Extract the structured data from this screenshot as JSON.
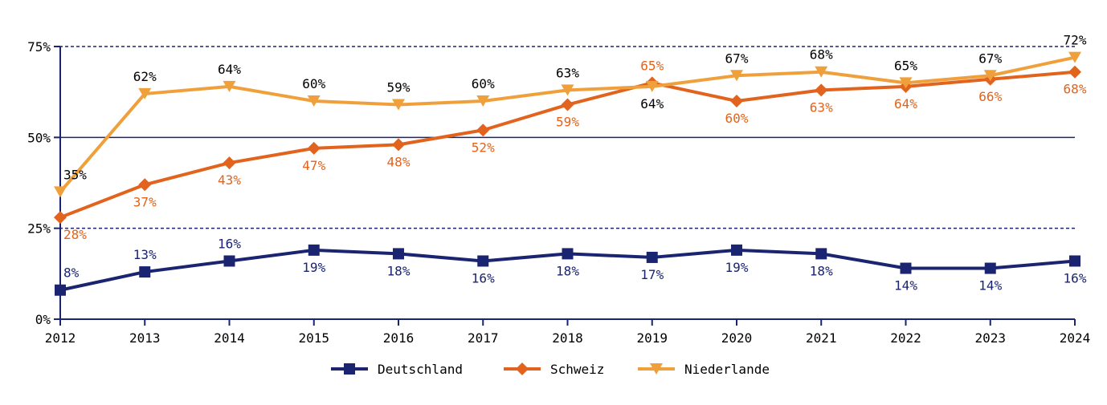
{
  "chart_data": {
    "type": "line",
    "title": "",
    "xlabel": "",
    "ylabel": "",
    "x": [
      "2012",
      "2013",
      "2014",
      "2015",
      "2016",
      "2017",
      "2018",
      "2019",
      "2020",
      "2021",
      "2022",
      "2023",
      "2024"
    ],
    "ylim": [
      0,
      75
    ],
    "yticks": [
      0,
      25,
      50,
      75
    ],
    "ytick_labels": [
      "0%",
      "25%",
      "50%",
      "75%"
    ],
    "gridlines": [
      {
        "value": 25,
        "style": "dashed"
      },
      {
        "value": 50,
        "style": "solid"
      },
      {
        "value": 75,
        "style": "dashed"
      }
    ],
    "legend_position": "bottom",
    "series": [
      {
        "name": "Deutschland",
        "color": "#1a2470",
        "label_color": "#1a2470",
        "marker": "square",
        "values": [
          8,
          13,
          16,
          19,
          18,
          16,
          18,
          17,
          19,
          18,
          14,
          14,
          16
        ],
        "labels": [
          "8%",
          "13%",
          "16%",
          "19%",
          "18%",
          "16%",
          "18%",
          "17%",
          "19%",
          "18%",
          "14%",
          "14%",
          "16%"
        ],
        "label_positions": [
          "above",
          "above",
          "above",
          "below",
          "below",
          "below",
          "below",
          "below",
          "below",
          "below",
          "below",
          "below",
          "below"
        ]
      },
      {
        "name": "Schweiz",
        "color": "#e2631d",
        "label_color": "#e2631d",
        "marker": "diamond",
        "values": [
          28,
          37,
          43,
          47,
          48,
          52,
          59,
          65,
          60,
          63,
          64,
          66,
          68
        ],
        "labels": [
          "28%",
          "37%",
          "43%",
          "47%",
          "48%",
          "52%",
          "59%",
          "65%",
          "60%",
          "63%",
          "64%",
          "66%",
          "68%"
        ],
        "label_positions": [
          "below",
          "below",
          "below",
          "below",
          "below",
          "below",
          "below",
          "above",
          "below",
          "below",
          "below",
          "below",
          "below"
        ]
      },
      {
        "name": "Niederlande",
        "color": "#f0a03a",
        "label_color": "#000000",
        "marker": "triangle-down",
        "values": [
          35,
          62,
          64,
          60,
          59,
          60,
          63,
          64,
          67,
          68,
          65,
          67,
          72
        ],
        "labels": [
          "35%",
          "62%",
          "64%",
          "60%",
          "59%",
          "60%",
          "63%",
          "64%",
          "67%",
          "68%",
          "65%",
          "67%",
          "72%"
        ],
        "label_positions": [
          "above",
          "above",
          "above",
          "above",
          "above",
          "above",
          "above",
          "below",
          "above",
          "above",
          "above",
          "above",
          "above"
        ]
      }
    ]
  },
  "colors": {
    "axis": "#1a2470"
  }
}
